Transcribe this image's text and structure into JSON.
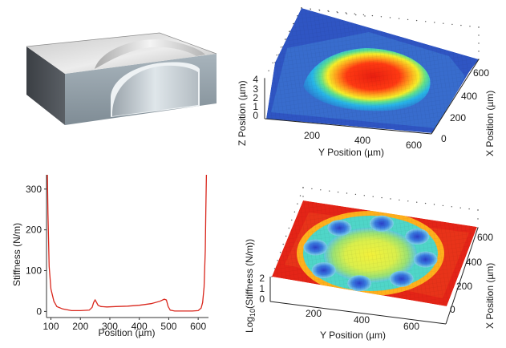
{
  "chart_data": [
    {
      "type": "other",
      "panel": "3d-cross-section-schematic"
    },
    {
      "type": "surface3d",
      "xlabel": "Y Position (µm)",
      "ylabel": "X Position (µm)",
      "zlabel": "Z Position (µm)",
      "x_ticks": [
        "200",
        "400",
        "600"
      ],
      "y_ticks": [
        "0",
        "200",
        "400",
        "600"
      ],
      "z_ticks": [
        "0",
        "1",
        "2",
        "3",
        "4"
      ],
      "colormap": "jet",
      "feature": "raised circular dome"
    },
    {
      "type": "line",
      "xlabel": "Position (µm)",
      "ylabel": "Stiffness (N/m)",
      "x_ticks": [
        "100",
        "200",
        "300",
        "400",
        "500",
        "600"
      ],
      "y_ticks": [
        "0",
        "100",
        "200",
        "300"
      ],
      "xlim": [
        85,
        635
      ],
      "ylim": [
        -15,
        335
      ],
      "line_color": "#d9261c",
      "series": [
        {
          "x": [
            88,
            90,
            94,
            100,
            110,
            120,
            140,
            170,
            200,
            230,
            240,
            245,
            250,
            255,
            260,
            270,
            290,
            320,
            360,
            400,
            440,
            470,
            485,
            492,
            498,
            505,
            520,
            550,
            580,
            600,
            610,
            615,
            620,
            624,
            626,
            628
          ],
          "y": [
            335,
            240,
            110,
            55,
            25,
            12,
            6,
            2,
            2,
            3,
            10,
            22,
            28,
            22,
            15,
            12,
            11,
            12,
            13,
            15,
            19,
            25,
            30,
            28,
            12,
            3,
            1,
            1,
            1,
            2,
            8,
            22,
            60,
            150,
            250,
            335
          ]
        }
      ]
    },
    {
      "type": "surface3d",
      "xlabel": "Y Position (µm)",
      "ylabel": "X Position (µm)",
      "zlabel": "Log10(Stiffness (N/m))",
      "zlabel_main": "Log",
      "zlabel_sub": "10",
      "zlabel_rest": "(Stiffness (N/m))",
      "x_ticks": [
        "200",
        "400",
        "600"
      ],
      "y_ticks": [
        "0",
        "200",
        "400",
        "600"
      ],
      "z_ticks": [
        "0",
        "1",
        "2"
      ],
      "colormap": "jet",
      "feature": "ring of low-stiffness holes around a central disc"
    }
  ]
}
